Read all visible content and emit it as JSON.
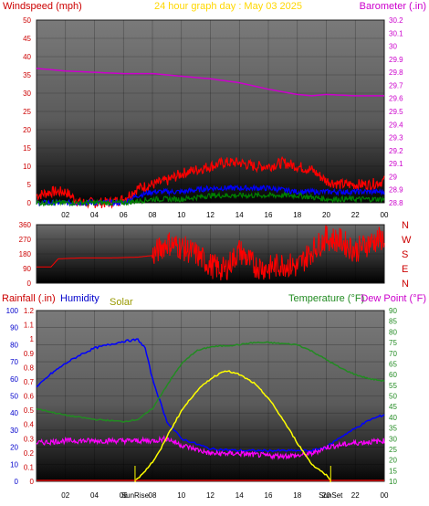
{
  "header": {
    "title": "24 hour graph day : May 03 2025",
    "wind_label": "Windspeed (mph)",
    "baro_label": "Barometer (.in)"
  },
  "direction_panel": {
    "compass": [
      "N",
      "W",
      "S",
      "E",
      "N"
    ]
  },
  "bottom_panel": {
    "rain_label": "Rainfall (.in)",
    "humidity_label": "Humidity",
    "solar_label": "Solar",
    "temp_label": "Temperature (°F)",
    "dew_label": "Dew Point (°F)",
    "sunrise_label": "SunRise",
    "sunset_label": "SunSet"
  },
  "colors": {
    "wind_gust": "#ff0000",
    "wind_avg": "#0000ff",
    "wind_low": "#008000",
    "barometer": "#cc00cc",
    "direction": "#ff0000",
    "humidity": "#0000ff",
    "temperature": "#228b22",
    "dew_point": "#ff00ff",
    "solar": "#ffff00",
    "title": "#ffd700"
  },
  "chart_data": [
    {
      "type": "line",
      "panel": "wind-barometer",
      "x_ticks": [
        "02",
        "04",
        "06",
        "08",
        "10",
        "12",
        "14",
        "16",
        "18",
        "20",
        "22",
        "00"
      ],
      "y_left_ticks": [
        0,
        5,
        10,
        15,
        20,
        25,
        30,
        35,
        40,
        45,
        50
      ],
      "y_left_range": [
        0,
        50
      ],
      "y_right_ticks": [
        28.8,
        28.9,
        29,
        29.1,
        29.2,
        29.3,
        29.4,
        29.5,
        29.6,
        29.7,
        29.8,
        29.9,
        30,
        30.1,
        30.2
      ],
      "y_right_range": [
        28.8,
        30.2
      ],
      "series": [
        {
          "name": "Barometer",
          "axis": "right",
          "x": [
            0,
            2,
            4,
            6,
            8,
            10,
            12,
            14,
            16,
            17,
            18,
            19,
            20,
            22,
            24
          ],
          "values": [
            29.83,
            29.81,
            29.8,
            29.79,
            29.79,
            29.77,
            29.75,
            29.72,
            29.67,
            29.65,
            29.63,
            29.62,
            29.63,
            29.62,
            29.62
          ]
        },
        {
          "name": "Wind gust",
          "axis": "left",
          "x": [
            0,
            1,
            2,
            3,
            4,
            5,
            6,
            7,
            8,
            9,
            10,
            11,
            12,
            13,
            14,
            15,
            16,
            17,
            18,
            19,
            20,
            21,
            22,
            23,
            24
          ],
          "values": [
            2,
            3,
            3,
            0,
            0,
            0,
            1,
            4,
            5,
            6,
            8,
            9,
            10,
            11,
            11,
            10,
            10,
            11,
            10,
            9,
            6,
            5,
            5,
            5,
            6
          ]
        },
        {
          "name": "Wind average",
          "axis": "left",
          "x": [
            0,
            2,
            4,
            6,
            7,
            8,
            10,
            12,
            14,
            16,
            18,
            20,
            22,
            24
          ],
          "values": [
            0,
            0,
            0,
            0,
            2,
            3,
            3,
            4,
            4,
            4,
            3,
            3,
            3,
            3
          ]
        },
        {
          "name": "Wind low",
          "axis": "left",
          "x": [
            0,
            2,
            4,
            6,
            8,
            10,
            12,
            14,
            16,
            18,
            20,
            22,
            24
          ],
          "values": [
            0,
            0,
            0,
            0,
            1,
            1,
            2,
            2,
            2,
            2,
            1,
            1,
            1
          ]
        }
      ]
    },
    {
      "type": "line",
      "panel": "wind-direction",
      "y_ticks": [
        0,
        90,
        180,
        270,
        360
      ],
      "y_range": [
        0,
        360
      ],
      "series": [
        {
          "name": "Wind direction",
          "x": [
            0,
            1,
            1.5,
            3,
            5,
            7,
            8,
            9,
            10,
            11,
            12,
            13,
            14,
            15,
            16,
            17,
            18,
            19,
            20,
            21,
            22,
            23,
            24
          ],
          "values": [
            100,
            100,
            150,
            155,
            155,
            160,
            170,
            250,
            220,
            180,
            110,
            80,
            200,
            110,
            90,
            120,
            100,
            200,
            280,
            260,
            200,
            250,
            280
          ]
        }
      ]
    },
    {
      "type": "line",
      "panel": "temperature-humidity",
      "x_ticks": [
        "02",
        "04",
        "06",
        "08",
        "10",
        "12",
        "14",
        "16",
        "18",
        "20",
        "22",
        "00"
      ],
      "y_left_ticks": [
        0,
        10,
        20,
        30,
        40,
        50,
        60,
        70,
        80,
        90,
        100
      ],
      "y_left_range": [
        0,
        100
      ],
      "y_rain_ticks": [
        0,
        0.1,
        0.2,
        0.3,
        0.4,
        0.5,
        0.6,
        0.7,
        0.8,
        0.9,
        1,
        1.1,
        1.2
      ],
      "y_right_ticks": [
        10,
        15,
        20,
        25,
        30,
        35,
        40,
        45,
        50,
        55,
        60,
        65,
        70,
        75,
        80,
        85,
        90
      ],
      "y_right_range": [
        10,
        90
      ],
      "sunrise_hour": 6.8,
      "sunset_hour": 20.3,
      "series": [
        {
          "name": "Humidity",
          "axis": "left",
          "x": [
            0,
            1,
            2,
            3,
            4,
            5,
            6,
            7,
            7.5,
            8,
            9,
            10,
            12,
            14,
            16,
            18,
            19,
            20,
            21,
            22,
            23,
            24
          ],
          "values": [
            55,
            63,
            69,
            74,
            78,
            80,
            82,
            83,
            78,
            60,
            35,
            25,
            19,
            18,
            18,
            18,
            18,
            20,
            26,
            31,
            36,
            39
          ]
        },
        {
          "name": "Temperature",
          "axis": "right",
          "x": [
            0,
            2,
            4,
            6,
            7,
            8,
            9,
            10,
            11,
            12,
            14,
            15,
            16,
            18,
            19,
            20,
            21,
            22,
            23,
            24
          ],
          "values": [
            44,
            41,
            39,
            38,
            39,
            44,
            55,
            65,
            71,
            73,
            74,
            75,
            75,
            74,
            71,
            67,
            63,
            60,
            58,
            57
          ]
        },
        {
          "name": "Dew Point",
          "axis": "right",
          "x": [
            0,
            2,
            4,
            6,
            8,
            9,
            10,
            12,
            14,
            16,
            18,
            19,
            20,
            22,
            24
          ],
          "values": [
            28,
            29,
            29,
            29,
            29,
            30,
            27,
            23,
            23,
            22,
            22,
            23,
            26,
            28,
            29
          ]
        },
        {
          "name": "Solar",
          "axis": "right",
          "x": [
            6.8,
            7.5,
            8,
            8.5,
            9,
            10,
            11,
            12,
            13,
            14,
            15,
            16,
            17,
            18,
            19,
            20,
            20.3
          ],
          "values": [
            10,
            15,
            19,
            24,
            31,
            43,
            52,
            58,
            62,
            60,
            56,
            49,
            39,
            28,
            18,
            13,
            10
          ]
        }
      ]
    }
  ]
}
